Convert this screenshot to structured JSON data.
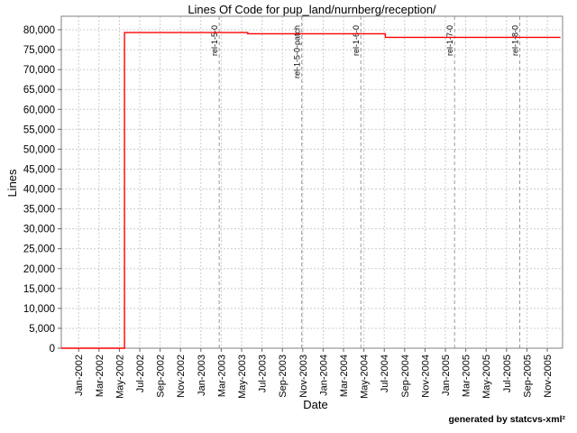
{
  "credit": "generated by statcvs-xml²",
  "chart_data": {
    "type": "line",
    "subtype": "step",
    "title": "Lines Of Code for pup_land/nurnberg/reception/",
    "xlabel": "Date",
    "ylabel": "Lines",
    "ylim": [
      0,
      80000
    ],
    "y_tick_interval": 5000,
    "y_tick_labels": [
      "0",
      "5,000",
      "10,000",
      "15,000",
      "20,000",
      "25,000",
      "30,000",
      "35,000",
      "40,000",
      "45,000",
      "50,000",
      "55,000",
      "60,000",
      "65,000",
      "70,000",
      "75,000",
      "80,000"
    ],
    "x_tick_labels": [
      "Jan-2002",
      "Mar-2002",
      "May-2002",
      "Jul-2002",
      "Sep-2002",
      "Nov-2002",
      "Jan-2003",
      "Mar-2003",
      "May-2003",
      "Jul-2003",
      "Sep-2003",
      "Nov-2003",
      "Jan-2004",
      "Mar-2004",
      "May-2004",
      "Jul-2004",
      "Sep-2004",
      "Nov-2004",
      "Jan-2005",
      "Mar-2005",
      "May-2005",
      "Jul-2005",
      "Sep-2005",
      "Nov-2005"
    ],
    "x_tick_month_step": 2,
    "x_range_months": [
      -1.7,
      47.5
    ],
    "grid": true,
    "legend": "none",
    "series": [
      {
        "name": "lines-of-code",
        "color": "#ff0000",
        "points": [
          {
            "m": -1.7,
            "lines": 0
          },
          {
            "m": 4.5,
            "lines": 0
          },
          {
            "m": 4.5,
            "lines": 79300
          },
          {
            "m": 16.6,
            "lines": 79300
          },
          {
            "m": 16.6,
            "lines": 79000
          },
          {
            "m": 30.1,
            "lines": 79000
          },
          {
            "m": 30.1,
            "lines": 78100
          },
          {
            "m": 47.3,
            "lines": 78100
          }
        ]
      }
    ],
    "annotations": [
      {
        "label": "rel-1-5-0",
        "m": 13.8
      },
      {
        "label": "rel-1-5-0-patch",
        "m": 21.9
      },
      {
        "label": "rel-1-6-0",
        "m": 27.7
      },
      {
        "label": "rel-1-7-0",
        "m": 36.9
      },
      {
        "label": "rel-1-8-0",
        "m": 43.3
      }
    ],
    "colors": {
      "line": "#ff0000",
      "grid": "#cccccc",
      "plot_border": "#808080",
      "tick_mark": "#666666",
      "annotation_line": "#999999",
      "annotation_text": "#333333",
      "text": "#000000",
      "background": "#ffffff"
    }
  }
}
